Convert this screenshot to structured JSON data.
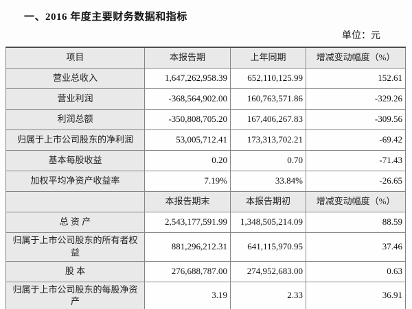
{
  "page": {
    "title": "一、2016 年度主要财务数据和指标",
    "unit_label": "单位：元"
  },
  "table": {
    "header1": {
      "item": "项目",
      "current": "本报告期",
      "prior": "上年同期",
      "change": "增减变动幅度（%）"
    },
    "rows_period": [
      {
        "item": "营业总收入",
        "current": "1,647,262,958.39",
        "prior": "652,110,125.99",
        "change": "152.61"
      },
      {
        "item": "营业利润",
        "current": "-368,564,902.00",
        "prior": "160,763,571.86",
        "change": "-329.26"
      },
      {
        "item": "利润总额",
        "current": "-350,808,705.20",
        "prior": "167,406,267.83",
        "change": "-309.56"
      },
      {
        "item": "归属于上市公司股东的净利润",
        "current": "53,005,712.41",
        "prior": "173,313,702.21",
        "change": "-69.42"
      },
      {
        "item": "基本每股收益",
        "current": "0.20",
        "prior": "0.70",
        "change": "-71.43"
      },
      {
        "item": "加权平均净资产收益率",
        "current": "7.19%",
        "prior": "33.84%",
        "change": "-26.65"
      }
    ],
    "header2": {
      "item": "",
      "current": "本报告期末",
      "prior": "本报告期初",
      "change": "增减变动幅度（%）"
    },
    "rows_position": [
      {
        "item": "总 资 产",
        "current": "2,543,177,591.99",
        "prior": "1,348,505,214.09",
        "change": "88.59"
      },
      {
        "item": "归属于上市公司股东的所有者权益",
        "current": "881,296,212.31",
        "prior": "641,115,970.95",
        "change": "37.46"
      },
      {
        "item": "股 本",
        "current": "276,688,787.00",
        "prior": "274,952,683.00",
        "change": "0.63"
      },
      {
        "item": "归属于上市公司股东的每股净资产",
        "current": "3.19",
        "prior": "2.33",
        "change": "36.91"
      }
    ]
  }
}
